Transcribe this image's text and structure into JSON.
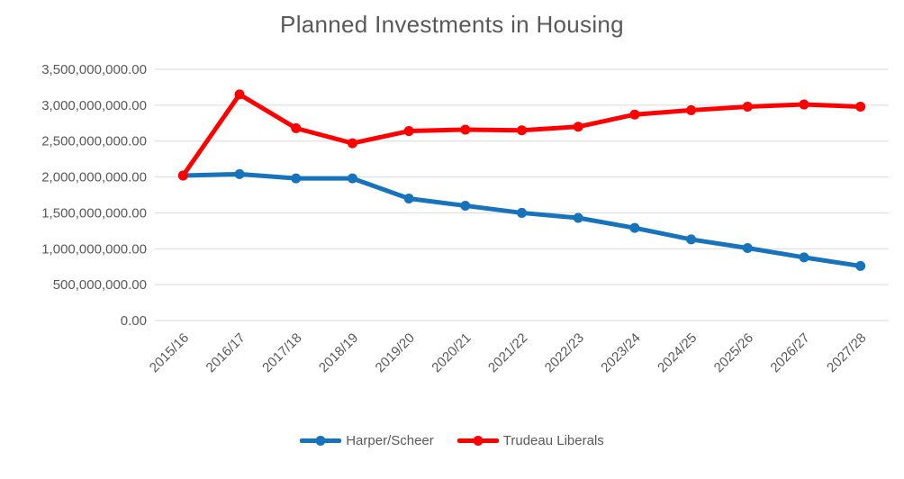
{
  "chart_data": {
    "type": "line",
    "title": "Planned Investments in Housing",
    "categories": [
      "2015/16",
      "2016/17",
      "2017/18",
      "2018/19",
      "2019/20",
      "2020/21",
      "2021/22",
      "2022/23",
      "2023/24",
      "2024/25",
      "2025/26",
      "2026/27",
      "2027/28"
    ],
    "series": [
      {
        "name": "Harper/Scheer",
        "color": "#1673BC",
        "values": [
          2020000000,
          2040000000,
          1980000000,
          1980000000,
          1700000000,
          1600000000,
          1500000000,
          1430000000,
          1290000000,
          1130000000,
          1010000000,
          880000000,
          760000000
        ]
      },
      {
        "name": "Trudeau Liberals",
        "color": "#FF0000",
        "values": [
          2020000000,
          3150000000,
          2680000000,
          2470000000,
          2640000000,
          2660000000,
          2650000000,
          2700000000,
          2870000000,
          2930000000,
          2980000000,
          3010000000,
          2980000000
        ]
      }
    ],
    "xlabel": "",
    "ylabel": "",
    "ylim": [
      0,
      3500000000
    ],
    "ytick_interval": 500000000,
    "ytick_labels": [
      "0.00",
      "500,000,000.00",
      "1,000,000,000.00",
      "1,500,000,000.00",
      "2,000,000,000.00",
      "2,500,000,000.00",
      "3,000,000,000.00",
      "3,500,000,000.00"
    ],
    "grid": true,
    "gridline_color": "#D9D9D9",
    "axis_text_color": "#595959",
    "title_color": "#595959",
    "background": "#FFFFFF",
    "legend_position": "bottom"
  }
}
